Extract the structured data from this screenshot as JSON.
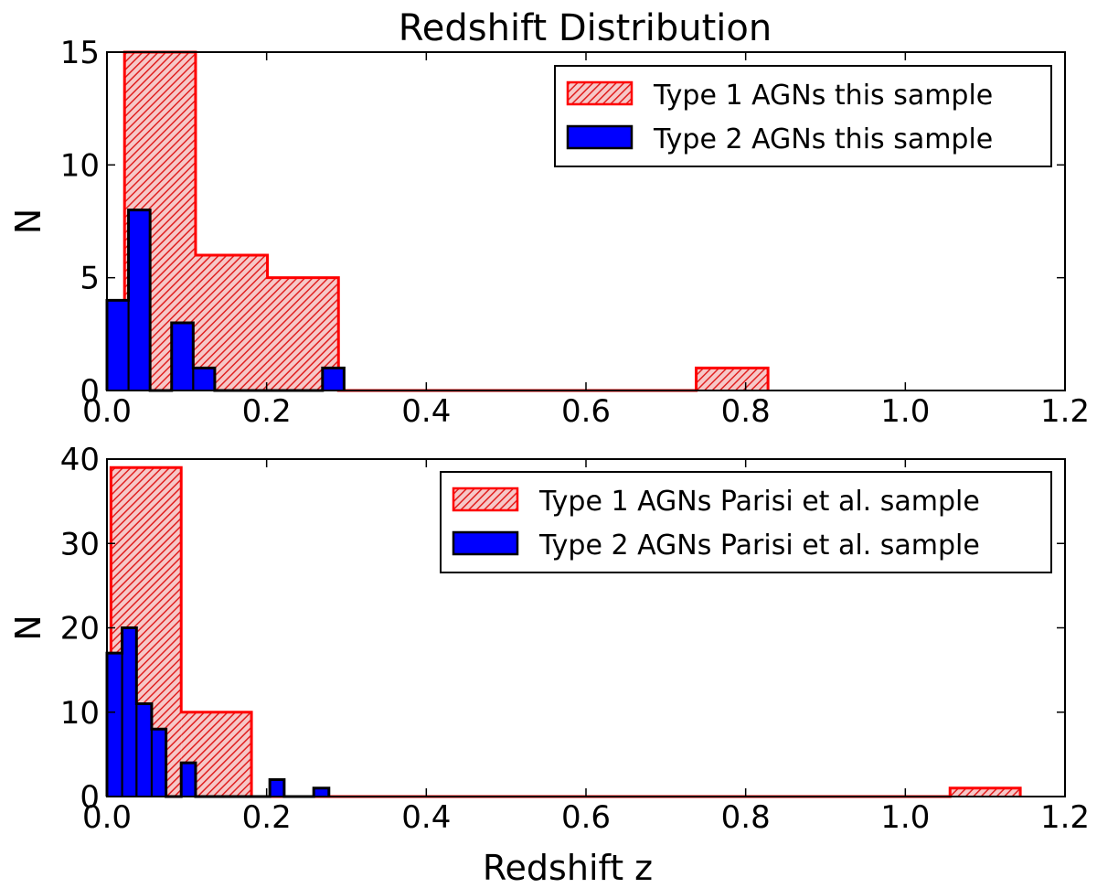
{
  "figure_title": "Redshift Distribution",
  "colors": {
    "type1_edge": "#ff0000",
    "type1_hatch": "#ee2222",
    "type2_fill": "#0000ff",
    "type2_edge": "#000000"
  },
  "chart_data": [
    {
      "type": "bar",
      "subtype": "histogram-step",
      "title": "Redshift Distribution",
      "xlabel": "",
      "ylabel": "N",
      "xlim": [
        0.0,
        1.2
      ],
      "ylim": [
        0,
        15
      ],
      "xticks": [
        "0.0",
        "0.2",
        "0.4",
        "0.6",
        "0.8",
        "1.0",
        "1.2"
      ],
      "yticks": [
        "0",
        "5",
        "10",
        "15"
      ],
      "xtick_values": [
        0.0,
        0.2,
        0.4,
        0.6,
        0.8,
        1.0,
        1.2
      ],
      "ytick_values": [
        0,
        5,
        10,
        15
      ],
      "legend_position": "top-right",
      "series": [
        {
          "name": "Type 1 AGNs this sample",
          "style": "hatched-red",
          "bins": [
            {
              "x0": 0.022,
              "x1": 0.111,
              "value": 15
            },
            {
              "x0": 0.111,
              "x1": 0.201,
              "value": 6
            },
            {
              "x0": 0.201,
              "x1": 0.29,
              "value": 5
            },
            {
              "x0": 0.29,
              "x1": 0.38,
              "value": 0
            },
            {
              "x0": 0.38,
              "x1": 0.469,
              "value": 0
            },
            {
              "x0": 0.469,
              "x1": 0.559,
              "value": 0
            },
            {
              "x0": 0.559,
              "x1": 0.648,
              "value": 0
            },
            {
              "x0": 0.648,
              "x1": 0.738,
              "value": 0
            },
            {
              "x0": 0.738,
              "x1": 0.828,
              "value": 1
            }
          ]
        },
        {
          "name": "Type 2 AGNs this sample",
          "style": "solid-blue",
          "bins": [
            {
              "x0": 0.0,
              "x1": 0.027,
              "value": 4
            },
            {
              "x0": 0.027,
              "x1": 0.054,
              "value": 8
            },
            {
              "x0": 0.054,
              "x1": 0.081,
              "value": 0
            },
            {
              "x0": 0.081,
              "x1": 0.108,
              "value": 3
            },
            {
              "x0": 0.108,
              "x1": 0.135,
              "value": 1
            },
            {
              "x0": 0.135,
              "x1": 0.162,
              "value": 0
            },
            {
              "x0": 0.162,
              "x1": 0.189,
              "value": 0
            },
            {
              "x0": 0.189,
              "x1": 0.216,
              "value": 0
            },
            {
              "x0": 0.216,
              "x1": 0.243,
              "value": 0
            },
            {
              "x0": 0.243,
              "x1": 0.27,
              "value": 0
            },
            {
              "x0": 0.27,
              "x1": 0.297,
              "value": 1
            }
          ]
        }
      ]
    },
    {
      "type": "bar",
      "subtype": "histogram-step",
      "title": "",
      "xlabel": "Redshift z",
      "ylabel": "N",
      "xlim": [
        0.0,
        1.2
      ],
      "ylim": [
        0,
        40
      ],
      "xticks": [
        "0.0",
        "0.2",
        "0.4",
        "0.6",
        "0.8",
        "1.0",
        "1.2"
      ],
      "yticks": [
        "0",
        "10",
        "20",
        "30",
        "40"
      ],
      "xtick_values": [
        0.0,
        0.2,
        0.4,
        0.6,
        0.8,
        1.0,
        1.2
      ],
      "ytick_values": [
        0,
        10,
        20,
        30,
        40
      ],
      "legend_position": "top-right",
      "series": [
        {
          "name": "Type 1 AGNs Parisi et al. sample",
          "style": "hatched-red",
          "bins": [
            {
              "x0": 0.005,
              "x1": 0.093,
              "value": 39
            },
            {
              "x0": 0.093,
              "x1": 0.181,
              "value": 10
            },
            {
              "x0": 0.181,
              "x1": 0.268,
              "value": 0
            },
            {
              "x0": 0.268,
              "x1": 0.356,
              "value": 0
            },
            {
              "x0": 0.356,
              "x1": 0.443,
              "value": 0
            },
            {
              "x0": 0.443,
              "x1": 0.531,
              "value": 0
            },
            {
              "x0": 0.531,
              "x1": 0.618,
              "value": 0
            },
            {
              "x0": 0.618,
              "x1": 0.706,
              "value": 0
            },
            {
              "x0": 0.706,
              "x1": 0.794,
              "value": 0
            },
            {
              "x0": 0.794,
              "x1": 0.881,
              "value": 0
            },
            {
              "x0": 0.881,
              "x1": 0.969,
              "value": 0
            },
            {
              "x0": 0.969,
              "x1": 1.056,
              "value": 0
            },
            {
              "x0": 1.056,
              "x1": 1.144,
              "value": 1
            }
          ]
        },
        {
          "name": "Type 2 AGNs Parisi et al. sample",
          "style": "solid-blue",
          "bins": [
            {
              "x0": 0.0,
              "x1": 0.019,
              "value": 17
            },
            {
              "x0": 0.019,
              "x1": 0.037,
              "value": 20
            },
            {
              "x0": 0.037,
              "x1": 0.056,
              "value": 11
            },
            {
              "x0": 0.056,
              "x1": 0.074,
              "value": 8
            },
            {
              "x0": 0.074,
              "x1": 0.093,
              "value": 0
            },
            {
              "x0": 0.093,
              "x1": 0.111,
              "value": 4
            },
            {
              "x0": 0.111,
              "x1": 0.13,
              "value": 0
            },
            {
              "x0": 0.13,
              "x1": 0.148,
              "value": 0
            },
            {
              "x0": 0.148,
              "x1": 0.167,
              "value": 0
            },
            {
              "x0": 0.167,
              "x1": 0.185,
              "value": 0
            },
            {
              "x0": 0.185,
              "x1": 0.204,
              "value": 0
            },
            {
              "x0": 0.204,
              "x1": 0.222,
              "value": 2
            },
            {
              "x0": 0.222,
              "x1": 0.241,
              "value": 0
            },
            {
              "x0": 0.241,
              "x1": 0.259,
              "value": 0
            },
            {
              "x0": 0.259,
              "x1": 0.278,
              "value": 1
            }
          ]
        }
      ]
    }
  ]
}
